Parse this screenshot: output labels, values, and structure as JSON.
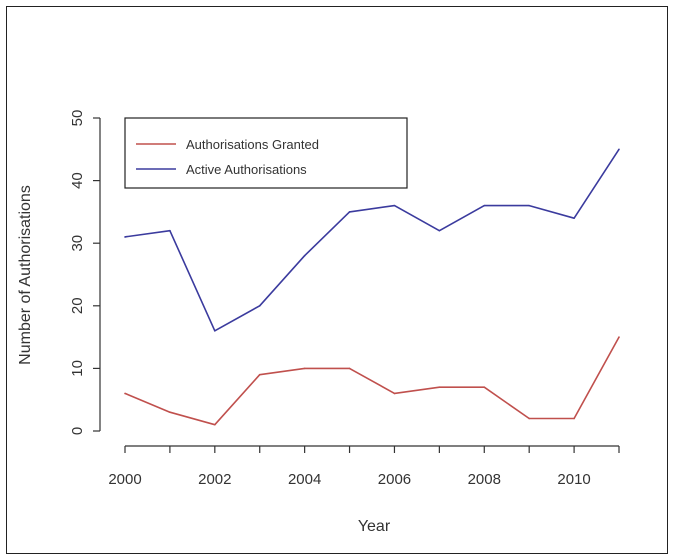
{
  "chart_data": {
    "type": "line",
    "title": "",
    "xlabel": "Year",
    "ylabel": "Number of Authorisations",
    "x": [
      2000,
      2001,
      2002,
      2003,
      2004,
      2005,
      2006,
      2007,
      2008,
      2009,
      2010,
      2011
    ],
    "xticks": [
      2000,
      2002,
      2004,
      2006,
      2008,
      2010
    ],
    "yticks": [
      0,
      10,
      20,
      30,
      40,
      50
    ],
    "xlim": [
      2000,
      2011
    ],
    "ylim": [
      0,
      50
    ],
    "grid": false,
    "legend_position": "top-left",
    "series": [
      {
        "name": "Authorisations Granted",
        "color": "#c0504d",
        "values": [
          6,
          3,
          1,
          9,
          10,
          10,
          6,
          7,
          7,
          2,
          2,
          15
        ]
      },
      {
        "name": "Active Authorisations",
        "color": "#3b3b9e",
        "values": [
          31,
          32,
          16,
          20,
          28,
          35,
          36,
          32,
          36,
          36,
          34,
          45
        ]
      }
    ]
  }
}
